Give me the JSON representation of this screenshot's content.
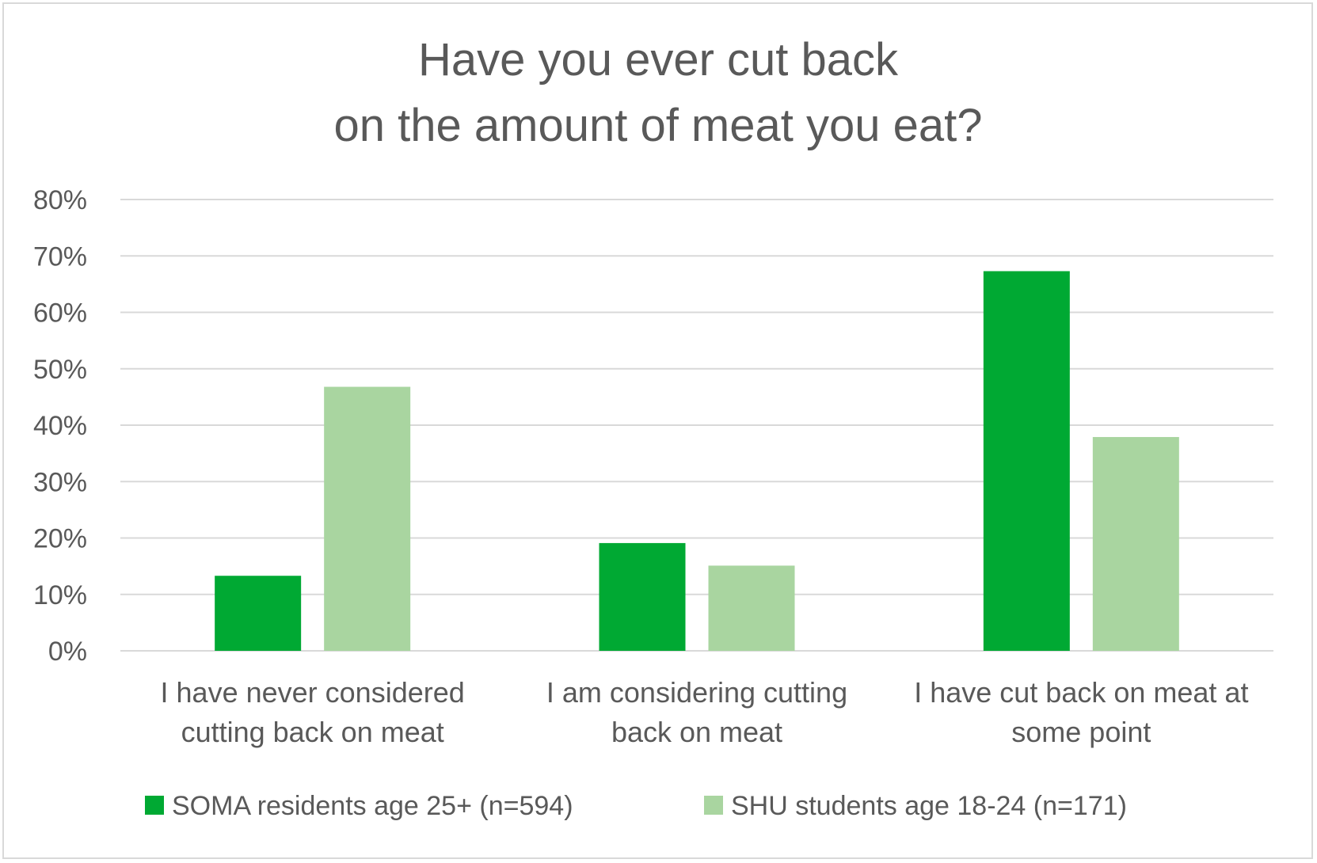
{
  "chart_data": {
    "type": "bar",
    "title_lines": [
      "Have you ever cut back",
      "on the amount of meat you eat?"
    ],
    "categories": [
      [
        "I have never considered",
        "cutting back on meat"
      ],
      [
        "I am considering cutting",
        "back on meat"
      ],
      [
        "I have cut back on meat at",
        "some point"
      ]
    ],
    "series": [
      {
        "name": "SOMA residents age 25+ (n=594)",
        "color": "#00a933",
        "values": [
          13.3,
          19.1,
          67.3
        ]
      },
      {
        "name": "SHU students age 18-24 (n=171)",
        "color": "#a9d5a0",
        "values": [
          46.8,
          15.1,
          37.9
        ]
      }
    ],
    "ylim": [
      0,
      80
    ],
    "yticks": [
      "0%",
      "10%",
      "20%",
      "30%",
      "40%",
      "50%",
      "60%",
      "70%",
      "80%"
    ],
    "grid": true,
    "legend_position": "bottom",
    "gridline_color": "#d9d9d9"
  }
}
